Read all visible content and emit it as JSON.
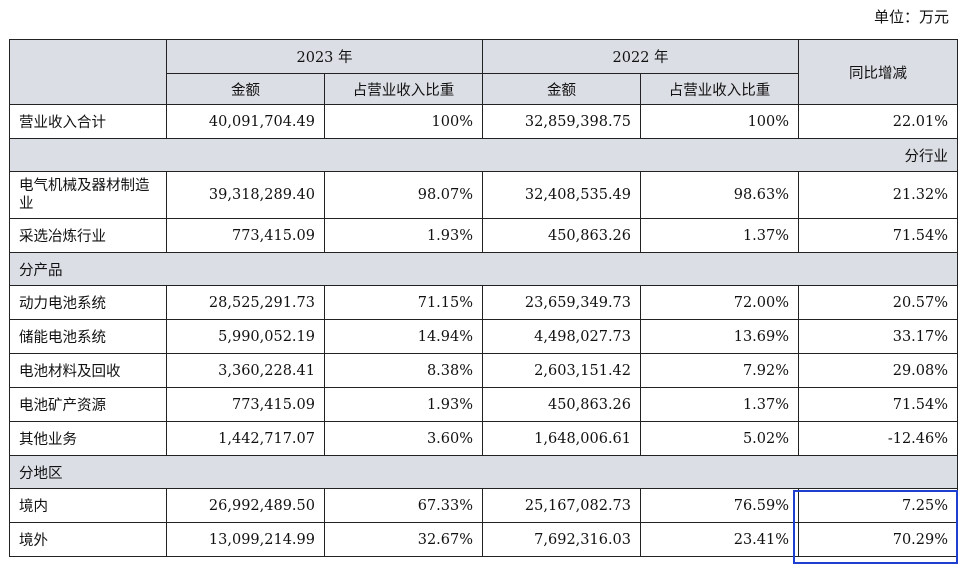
{
  "unit_label": "单位：万元",
  "header": {
    "year_2023": "2023 年",
    "year_2022": "2022 年",
    "yoy": "同比增减",
    "amount": "金额",
    "ratio": "占营业收入比重"
  },
  "total": {
    "label": "营业收入合计",
    "amt_2023": "40,091,704.49",
    "pct_2023": "100%",
    "amt_2022": "32,859,398.75",
    "pct_2022": "100%",
    "yoy": "22.01%"
  },
  "section_industry": "分行业",
  "industry_rows": [
    {
      "label": "电气机械及器材制造业",
      "amt_2023": "39,318,289.40",
      "pct_2023": "98.07%",
      "amt_2022": "32,408,535.49",
      "pct_2022": "98.63%",
      "yoy": "21.32%"
    },
    {
      "label": "采选冶炼行业",
      "amt_2023": "773,415.09",
      "pct_2023": "1.93%",
      "amt_2022": "450,863.26",
      "pct_2022": "1.37%",
      "yoy": "71.54%"
    }
  ],
  "section_product": "分产品",
  "product_rows": [
    {
      "label": "动力电池系统",
      "amt_2023": "28,525,291.73",
      "pct_2023": "71.15%",
      "amt_2022": "23,659,349.73",
      "pct_2022": "72.00%",
      "yoy": "20.57%"
    },
    {
      "label": "储能电池系统",
      "amt_2023": "5,990,052.19",
      "pct_2023": "14.94%",
      "amt_2022": "4,498,027.73",
      "pct_2022": "13.69%",
      "yoy": "33.17%"
    },
    {
      "label": "电池材料及回收",
      "amt_2023": "3,360,228.41",
      "pct_2023": "8.38%",
      "amt_2022": "2,603,151.42",
      "pct_2022": "7.92%",
      "yoy": "29.08%"
    },
    {
      "label": "电池矿产资源",
      "amt_2023": "773,415.09",
      "pct_2023": "1.93%",
      "amt_2022": "450,863.26",
      "pct_2022": "1.37%",
      "yoy": "71.54%"
    },
    {
      "label": "其他业务",
      "amt_2023": "1,442,717.07",
      "pct_2023": "3.60%",
      "amt_2022": "1,648,006.61",
      "pct_2022": "5.02%",
      "yoy": "-12.46%"
    }
  ],
  "section_region": "分地区",
  "region_rows": [
    {
      "label": "境内",
      "amt_2023": "26,992,489.50",
      "pct_2023": "67.33%",
      "amt_2022": "25,167,082.73",
      "pct_2022": "76.59%",
      "yoy": "7.25%"
    },
    {
      "label": "境外",
      "amt_2023": "13,099,214.99",
      "pct_2023": "32.67%",
      "amt_2022": "7,692,316.03",
      "pct_2022": "23.41%",
      "yoy": "70.29%"
    }
  ],
  "highlight_color": "#1f3fd0"
}
